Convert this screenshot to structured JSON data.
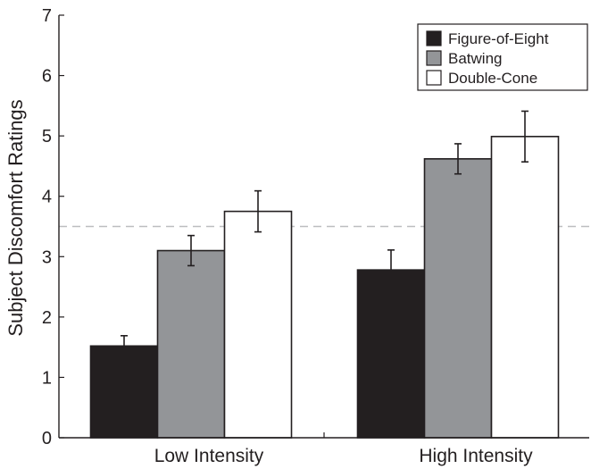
{
  "chart_data": {
    "type": "bar",
    "title": "",
    "xlabel": "",
    "ylabel": "Subject Discomfort Ratings",
    "ylim": [
      0,
      7
    ],
    "yticks": [
      "0",
      "1",
      "2",
      "3",
      "4",
      "5",
      "6",
      "7"
    ],
    "categories": [
      "Low Intensity",
      "High Intensity"
    ],
    "series": [
      {
        "name": "Figure-of-Eight",
        "color": "#231f20",
        "values": [
          1.52,
          2.78
        ],
        "errors": [
          0.17,
          0.33
        ]
      },
      {
        "name": "Batwing",
        "color": "#939598",
        "values": [
          3.1,
          4.62
        ],
        "errors": [
          0.25,
          0.25
        ]
      },
      {
        "name": "Double-Cone",
        "color": "#ffffff",
        "values": [
          3.75,
          4.99
        ],
        "errors": [
          0.34,
          0.42
        ]
      }
    ],
    "reference_line": {
      "value": 3.5,
      "style": "dashed",
      "color": "#bcbec0"
    },
    "legend_position": "top-right",
    "grid": false
  }
}
